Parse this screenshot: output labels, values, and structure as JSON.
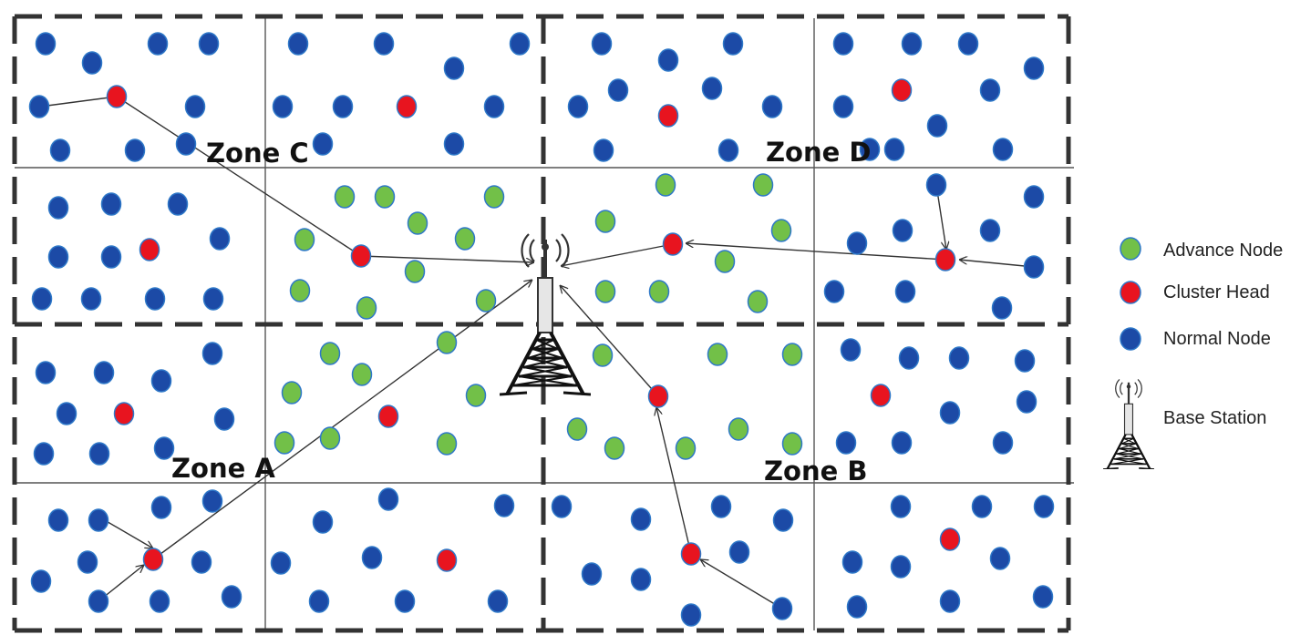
{
  "zones": [
    {
      "id": "C",
      "label": "Zone C"
    },
    {
      "id": "D",
      "label": "Zone D"
    },
    {
      "id": "A",
      "label": "Zone A"
    },
    {
      "id": "B",
      "label": "Zone B"
    }
  ],
  "legend": {
    "advance_node": "Advance Node",
    "cluster_head": "Cluster Head",
    "normal_node": "Normal Node",
    "base_station": "Base Station"
  },
  "colors": {
    "normal_node": "#1c4aa6",
    "advance_node": "#72c048",
    "cluster_head": "#e8141f",
    "node_stroke": "#2e78c8"
  },
  "icons": {
    "base_station": "base-station-tower-icon"
  }
}
